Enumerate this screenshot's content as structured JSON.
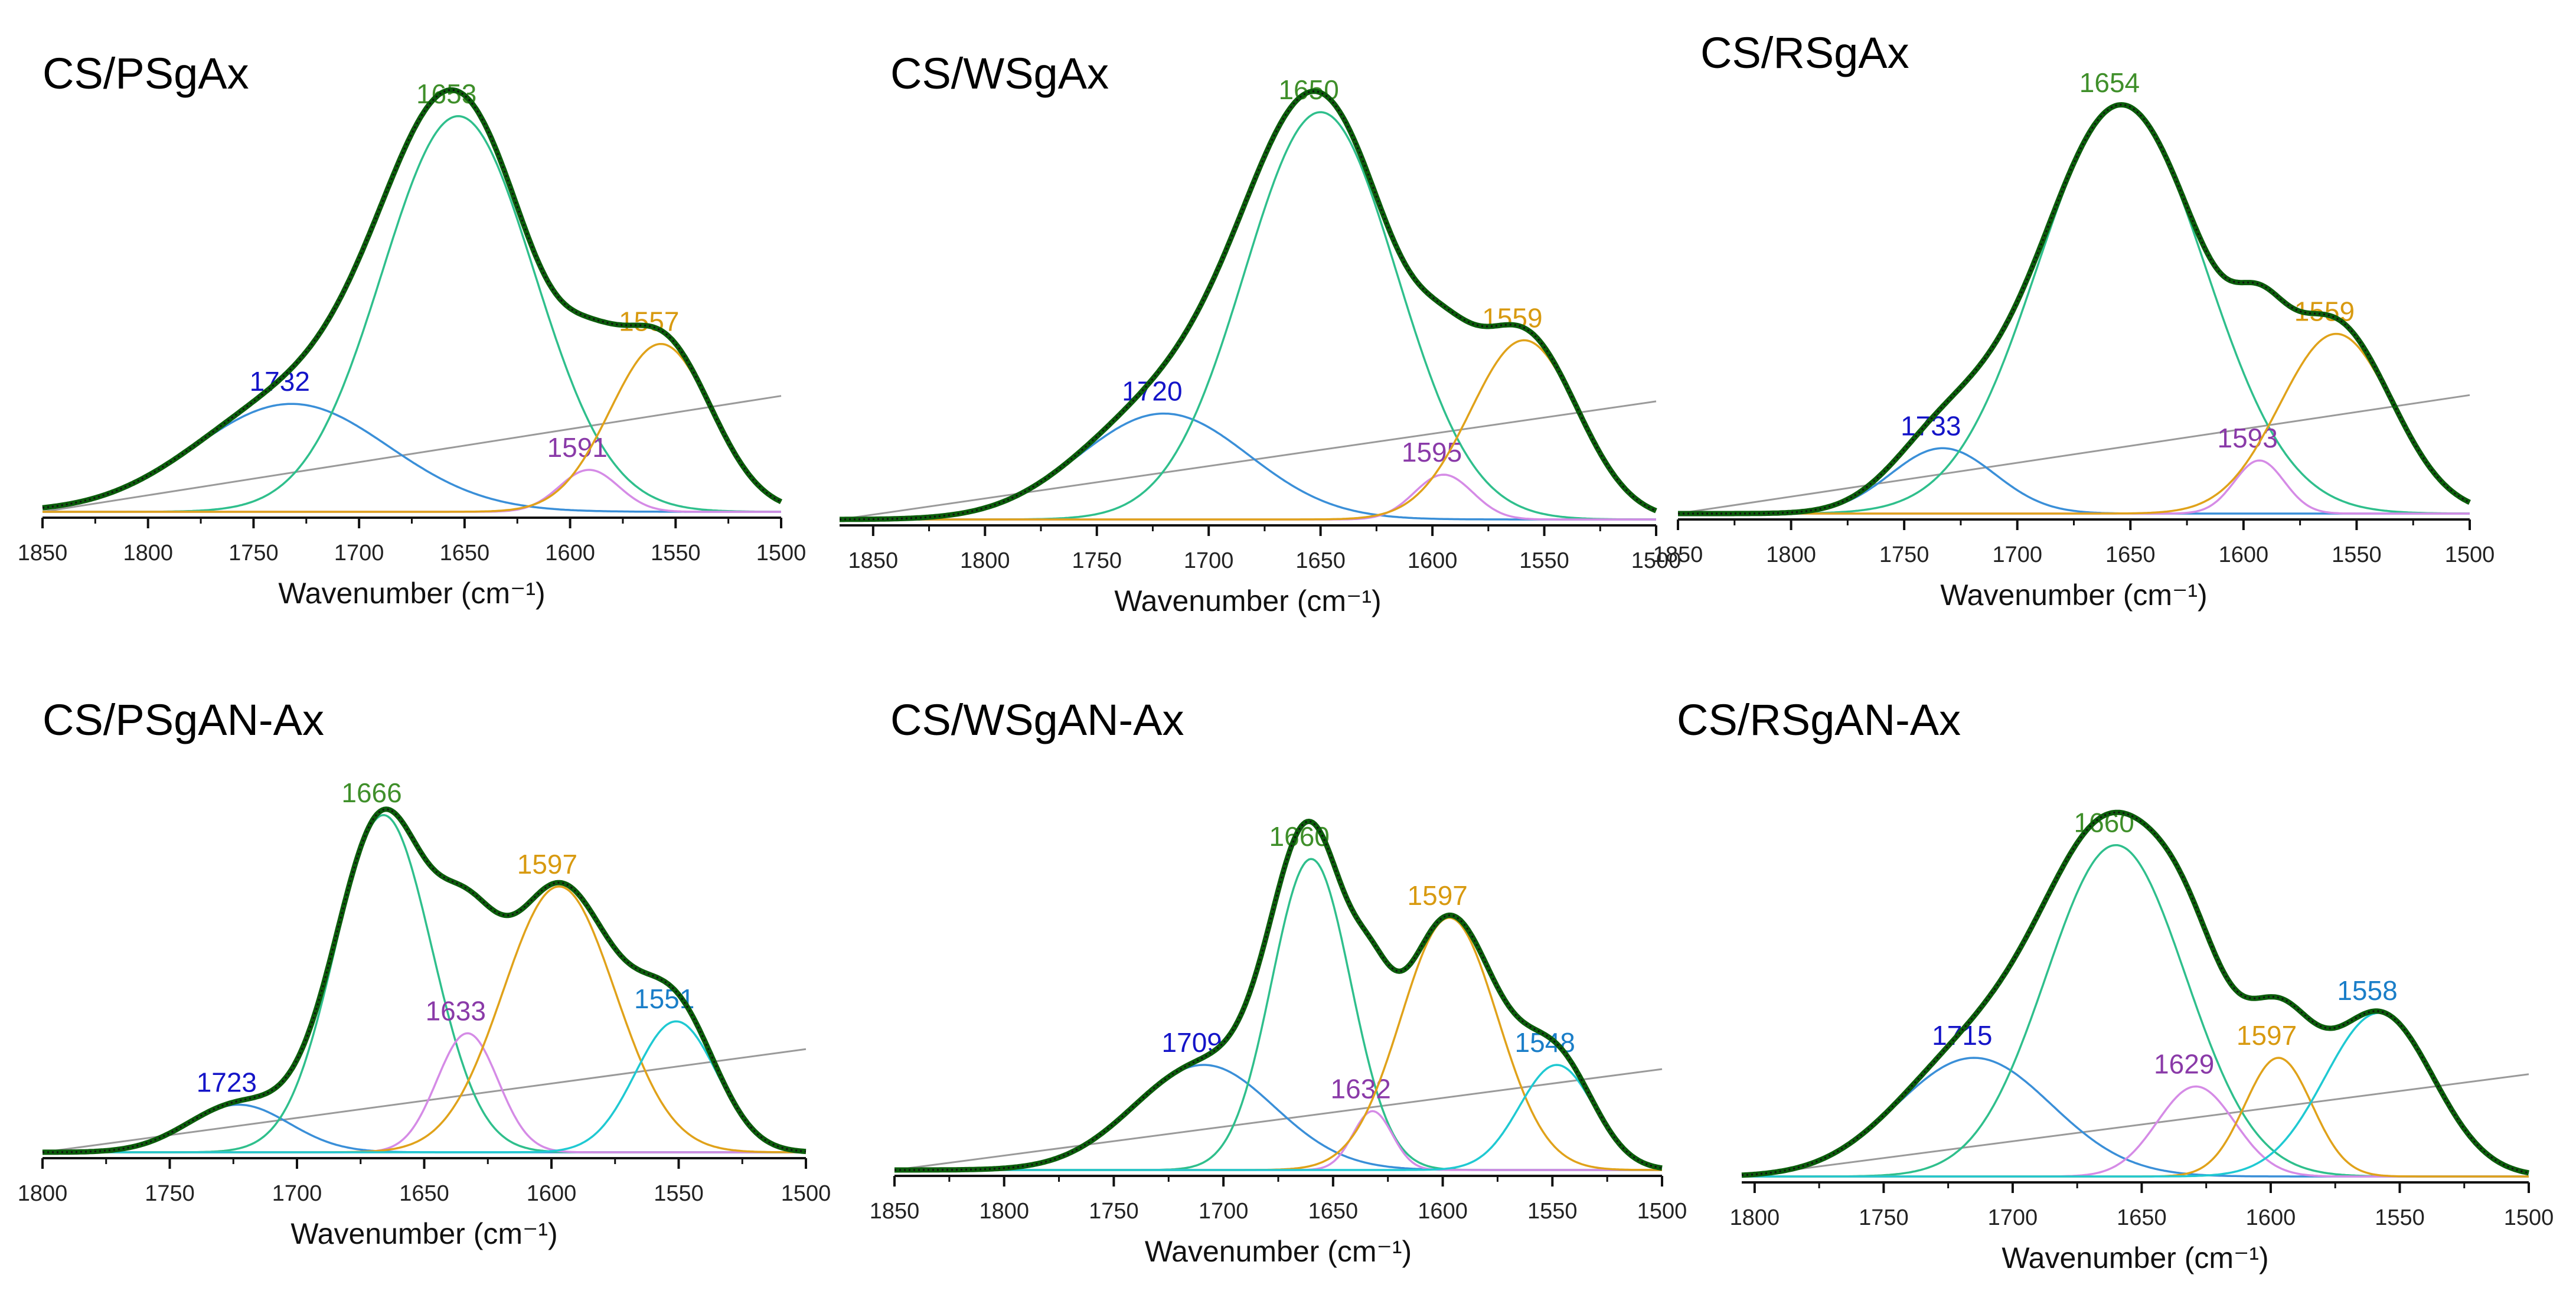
{
  "figure": {
    "description_free": true,
    "axis_unit_label": "Wavenumber (cm⁻¹)"
  },
  "colors": {
    "envelope": "#0b5d0b",
    "envelope_dots": "#111111",
    "baseline": "#9a9a9a",
    "blue": "#3a8fd8",
    "blue_label": "#1414c8",
    "green": "#2fbf8c",
    "green_label": "#3f8f2a",
    "violet": "#d58be6",
    "violet_label": "#8a3aa8",
    "orange": "#e0a21a",
    "orange_label": "#d89a10",
    "cyan": "#1fc9d2",
    "cyan_label": "#1a7ec8",
    "axis": "#111111"
  },
  "chart_data": [
    {
      "type": "line",
      "title": "CS/PSgAx",
      "xlabel": "Wavenumber (cm⁻¹)",
      "ylabel": "",
      "xlim": [
        1850,
        1500
      ],
      "xticks": [
        1850,
        1800,
        1750,
        1700,
        1650,
        1600,
        1550,
        1500
      ],
      "ylim": [
        0,
        1.0
      ],
      "baseline": {
        "start": 0.0,
        "end": 0.29
      },
      "peaks": [
        {
          "center": 1732,
          "height": 0.27,
          "width": 46,
          "color": "blue",
          "label": "1732"
        },
        {
          "center": 1653,
          "height": 0.99,
          "width": 36,
          "color": "green",
          "label": "1653"
        },
        {
          "center": 1591,
          "height": 0.105,
          "width": 14,
          "color": "violet",
          "label": "1591"
        },
        {
          "center": 1557,
          "height": 0.42,
          "width": 24,
          "color": "orange",
          "label": "1557"
        }
      ]
    },
    {
      "type": "line",
      "title": "CS/WSgAx",
      "xlabel": "Wavenumber (cm⁻¹)",
      "ylabel": "",
      "xlim": [
        1865,
        1500
      ],
      "xticks": [
        1850,
        1800,
        1750,
        1700,
        1650,
        1600,
        1550,
        1500
      ],
      "ylim": [
        0,
        1.0
      ],
      "baseline": {
        "start": 0.0,
        "end": 0.29
      },
      "peaks": [
        {
          "center": 1720,
          "height": 0.26,
          "width": 38,
          "color": "blue",
          "label": "1720"
        },
        {
          "center": 1650,
          "height": 1.0,
          "width": 34,
          "color": "green",
          "label": "1650"
        },
        {
          "center": 1595,
          "height": 0.11,
          "width": 13,
          "color": "violet",
          "label": "1595"
        },
        {
          "center": 1559,
          "height": 0.44,
          "width": 24,
          "color": "orange",
          "label": "1559"
        }
      ]
    },
    {
      "type": "line",
      "title": "CS/RSgAx",
      "xlabel": "Wavenumber (cm⁻¹)",
      "ylabel": "",
      "xlim": [
        1850,
        1500
      ],
      "xticks": [
        1850,
        1800,
        1750,
        1700,
        1650,
        1600,
        1550,
        1500
      ],
      "ylim": [
        0,
        1.0
      ],
      "baseline": {
        "start": 0.0,
        "end": 0.29
      },
      "peaks": [
        {
          "center": 1733,
          "height": 0.16,
          "width": 23,
          "color": "blue",
          "label": "1733"
        },
        {
          "center": 1654,
          "height": 1.0,
          "width": 37,
          "color": "green",
          "label": "1654"
        },
        {
          "center": 1593,
          "height": 0.13,
          "width": 11,
          "color": "violet",
          "label": "1593"
        },
        {
          "center": 1559,
          "height": 0.44,
          "width": 25,
          "color": "orange",
          "label": "1559"
        }
      ]
    },
    {
      "type": "line",
      "title": "CS/PSgAN-Ax",
      "xlabel": "Wavenumber (cm⁻¹)",
      "ylabel": "",
      "xlim": [
        1800,
        1500
      ],
      "xticks": [
        1800,
        1750,
        1700,
        1650,
        1600,
        1550,
        1500
      ],
      "ylim": [
        0,
        1.0
      ],
      "baseline": {
        "start": 0.0,
        "end": 0.26
      },
      "peaks": [
        {
          "center": 1723,
          "height": 0.12,
          "width": 20,
          "color": "blue",
          "label": "1723"
        },
        {
          "center": 1666,
          "height": 0.85,
          "width": 19,
          "color": "green",
          "label": "1666"
        },
        {
          "center": 1633,
          "height": 0.3,
          "width": 12,
          "color": "violet",
          "label": "1633"
        },
        {
          "center": 1597,
          "height": 0.67,
          "width": 22,
          "color": "orange",
          "label": "1597"
        },
        {
          "center": 1551,
          "height": 0.33,
          "width": 16,
          "color": "cyan",
          "label": "1551"
        }
      ]
    },
    {
      "type": "line",
      "title": "CS/WSgAN-Ax",
      "xlabel": "Wavenumber (cm⁻¹)",
      "ylabel": "",
      "xlim": [
        1850,
        1500
      ],
      "xticks": [
        1850,
        1800,
        1750,
        1700,
        1650,
        1600,
        1550,
        1500
      ],
      "ylim": [
        0,
        1.0
      ],
      "baseline": {
        "start": 0.0,
        "end": 0.24
      },
      "peaks": [
        {
          "center": 1709,
          "height": 0.25,
          "width": 32,
          "color": "blue",
          "label": "1709"
        },
        {
          "center": 1660,
          "height": 0.74,
          "width": 18,
          "color": "green",
          "label": "1660"
        },
        {
          "center": 1632,
          "height": 0.14,
          "width": 9,
          "color": "violet",
          "label": "1632"
        },
        {
          "center": 1597,
          "height": 0.6,
          "width": 22,
          "color": "orange",
          "label": "1597"
        },
        {
          "center": 1548,
          "height": 0.25,
          "width": 17,
          "color": "cyan",
          "label": "1548"
        }
      ]
    },
    {
      "type": "line",
      "title": "CS/RSgAN-Ax",
      "xlabel": "Wavenumber (cm⁻¹)",
      "ylabel": "",
      "xlim": [
        1805,
        1500
      ],
      "xticks": [
        1800,
        1750,
        1700,
        1650,
        1600,
        1550,
        1500
      ],
      "ylim": [
        0,
        1.0
      ],
      "baseline": {
        "start": 0.0,
        "end": 0.25
      },
      "peaks": [
        {
          "center": 1715,
          "height": 0.29,
          "width": 30,
          "color": "blue",
          "label": "1715"
        },
        {
          "center": 1660,
          "height": 0.81,
          "width": 27,
          "color": "green",
          "label": "1660"
        },
        {
          "center": 1629,
          "height": 0.22,
          "width": 15,
          "color": "violet",
          "label": "1629"
        },
        {
          "center": 1597,
          "height": 0.29,
          "width": 13,
          "color": "orange",
          "label": "1597"
        },
        {
          "center": 1558,
          "height": 0.4,
          "width": 21,
          "color": "cyan",
          "label": "1558"
        }
      ]
    }
  ]
}
